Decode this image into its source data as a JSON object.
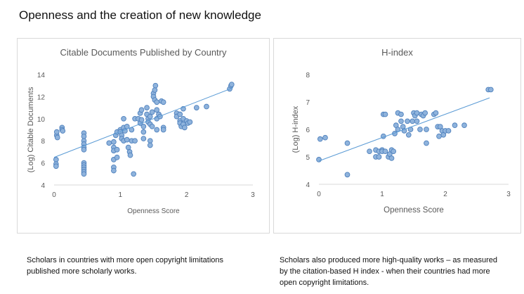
{
  "page": {
    "title": "Openness and the creation of new knowledge"
  },
  "captions": {
    "left": "Scholars in countries with more open copyright limitations published more scholarly works.",
    "right": "Scholars also produced more high-quality works – as measured by the citation-based  H index - when their countries had more open copyright limitations."
  },
  "colors": {
    "marker_fill": "#8fb3dc",
    "marker_stroke": "#4f81bd",
    "trendline": "#5b9bd5",
    "title_text": "#595959",
    "tick_text": "#595959",
    "axis_line": "#d9d9d9"
  },
  "chart_data": [
    {
      "type": "scatter",
      "title": "Citable Documents  Published  by Country",
      "xlabel": "Openness Score",
      "ylabel": "(Log) Citable Documents",
      "xlim": [
        0,
        3
      ],
      "ylim": [
        4,
        14
      ],
      "xticks": [
        "0",
        "1",
        "2",
        "3"
      ],
      "yticks": [
        "4",
        "6",
        "8",
        "10",
        "12",
        "14"
      ],
      "grid": false,
      "trendline": {
        "x": [
          0,
          2.7
        ],
        "y": [
          6.5,
          12.8
        ]
      },
      "points": [
        [
          0.03,
          6.3
        ],
        [
          0.03,
          5.9
        ],
        [
          0.03,
          5.7
        ],
        [
          0.04,
          8.5
        ],
        [
          0.04,
          8.8
        ],
        [
          0.05,
          8.3
        ],
        [
          0.12,
          9.2
        ],
        [
          0.12,
          9.0
        ],
        [
          0.13,
          8.9
        ],
        [
          0.45,
          8.7
        ],
        [
          0.45,
          8.4
        ],
        [
          0.45,
          8.0
        ],
        [
          0.45,
          7.7
        ],
        [
          0.45,
          7.4
        ],
        [
          0.45,
          7.2
        ],
        [
          0.45,
          6.0
        ],
        [
          0.45,
          5.8
        ],
        [
          0.45,
          5.6
        ],
        [
          0.45,
          5.4
        ],
        [
          0.45,
          5.2
        ],
        [
          0.45,
          5.0
        ],
        [
          0.83,
          7.8
        ],
        [
          0.9,
          7.9
        ],
        [
          0.9,
          7.4
        ],
        [
          0.9,
          7.1
        ],
        [
          0.9,
          6.3
        ],
        [
          0.9,
          5.6
        ],
        [
          0.9,
          5.3
        ],
        [
          0.93,
          8.5
        ],
        [
          0.95,
          8.8
        ],
        [
          0.95,
          7.2
        ],
        [
          0.95,
          6.5
        ],
        [
          1.0,
          9.0
        ],
        [
          1.0,
          8.8
        ],
        [
          1.02,
          8.5
        ],
        [
          1.02,
          8.2
        ],
        [
          1.05,
          10.0
        ],
        [
          1.05,
          9.2
        ],
        [
          1.05,
          8.0
        ],
        [
          1.07,
          8.9
        ],
        [
          1.1,
          8.1
        ],
        [
          1.1,
          9.3
        ],
        [
          1.12,
          7.4
        ],
        [
          1.14,
          7.0
        ],
        [
          1.15,
          6.7
        ],
        [
          1.17,
          8.0
        ],
        [
          1.17,
          9.0
        ],
        [
          1.2,
          5.0
        ],
        [
          1.22,
          8.0
        ],
        [
          1.22,
          10.0
        ],
        [
          1.27,
          10.0
        ],
        [
          1.3,
          10.5
        ],
        [
          1.3,
          9.6
        ],
        [
          1.32,
          10.8
        ],
        [
          1.32,
          9.9
        ],
        [
          1.35,
          9.3
        ],
        [
          1.35,
          8.2
        ],
        [
          1.35,
          8.8
        ],
        [
          1.4,
          11.0
        ],
        [
          1.4,
          10.4
        ],
        [
          1.42,
          10.0
        ],
        [
          1.42,
          9.7
        ],
        [
          1.45,
          10.2
        ],
        [
          1.45,
          9.5
        ],
        [
          1.45,
          8.0
        ],
        [
          1.45,
          7.6
        ],
        [
          1.48,
          10.6
        ],
        [
          1.48,
          9.3
        ],
        [
          1.5,
          12.3
        ],
        [
          1.5,
          12.0
        ],
        [
          1.52,
          11.7
        ],
        [
          1.52,
          12.6
        ],
        [
          1.53,
          13.0
        ],
        [
          1.55,
          11.5
        ],
        [
          1.55,
          10.8
        ],
        [
          1.55,
          10.0
        ],
        [
          1.55,
          9.0
        ],
        [
          1.58,
          10.4
        ],
        [
          1.6,
          10.2
        ],
        [
          1.62,
          11.6
        ],
        [
          1.65,
          11.5
        ],
        [
          1.65,
          9.2
        ],
        [
          1.65,
          9.0
        ],
        [
          1.85,
          10.5
        ],
        [
          1.85,
          10.2
        ],
        [
          1.9,
          10.4
        ],
        [
          1.9,
          9.8
        ],
        [
          1.9,
          9.6
        ],
        [
          1.92,
          9.3
        ],
        [
          1.95,
          10.9
        ],
        [
          1.95,
          10.0
        ],
        [
          1.95,
          9.5
        ],
        [
          1.97,
          9.2
        ],
        [
          2.0,
          9.8
        ],
        [
          2.02,
          9.6
        ],
        [
          2.05,
          9.7
        ],
        [
          2.15,
          11.0
        ],
        [
          2.3,
          11.1
        ],
        [
          2.65,
          12.7
        ],
        [
          2.67,
          13.0
        ],
        [
          2.68,
          13.1
        ]
      ]
    },
    {
      "type": "scatter",
      "title": "H-index",
      "xlabel": "Openness Score",
      "ylabel": "(Log) H-index",
      "xlim": [
        0,
        3
      ],
      "ylim": [
        4,
        8
      ],
      "xticks": [
        "0",
        "1",
        "2",
        "3"
      ],
      "yticks": [
        "4",
        "5",
        "6",
        "7",
        "8"
      ],
      "grid": false,
      "trendline": {
        "x": [
          0,
          2.7
        ],
        "y": [
          4.85,
          7.15
        ]
      },
      "points": [
        [
          0.0,
          4.9
        ],
        [
          0.02,
          5.65
        ],
        [
          0.1,
          5.7
        ],
        [
          0.45,
          4.35
        ],
        [
          0.45,
          5.5
        ],
        [
          0.8,
          5.2
        ],
        [
          0.9,
          5.25
        ],
        [
          0.9,
          5.0
        ],
        [
          0.95,
          5.2
        ],
        [
          0.95,
          5.0
        ],
        [
          1.0,
          5.25
        ],
        [
          1.0,
          5.2
        ],
        [
          1.02,
          5.75
        ],
        [
          1.02,
          6.55
        ],
        [
          1.05,
          6.55
        ],
        [
          1.05,
          5.2
        ],
        [
          1.1,
          5.0
        ],
        [
          1.12,
          5.1
        ],
        [
          1.15,
          4.95
        ],
        [
          1.15,
          5.25
        ],
        [
          1.18,
          5.2
        ],
        [
          1.2,
          5.85
        ],
        [
          1.22,
          6.15
        ],
        [
          1.25,
          6.0
        ],
        [
          1.25,
          6.6
        ],
        [
          1.3,
          6.55
        ],
        [
          1.3,
          6.3
        ],
        [
          1.33,
          6.1
        ],
        [
          1.35,
          5.95
        ],
        [
          1.4,
          6.3
        ],
        [
          1.42,
          5.8
        ],
        [
          1.45,
          6.0
        ],
        [
          1.48,
          6.3
        ],
        [
          1.5,
          6.6
        ],
        [
          1.52,
          6.5
        ],
        [
          1.55,
          6.6
        ],
        [
          1.55,
          6.3
        ],
        [
          1.6,
          6.0
        ],
        [
          1.62,
          6.55
        ],
        [
          1.65,
          6.5
        ],
        [
          1.68,
          6.6
        ],
        [
          1.7,
          6.0
        ],
        [
          1.7,
          5.5
        ],
        [
          1.82,
          6.55
        ],
        [
          1.85,
          6.6
        ],
        [
          1.88,
          6.1
        ],
        [
          1.9,
          5.75
        ],
        [
          1.92,
          6.1
        ],
        [
          1.95,
          5.95
        ],
        [
          1.97,
          5.8
        ],
        [
          2.0,
          5.95
        ],
        [
          2.05,
          5.95
        ],
        [
          2.15,
          6.15
        ],
        [
          2.3,
          6.15
        ],
        [
          2.68,
          7.45
        ],
        [
          2.72,
          7.45
        ]
      ]
    }
  ]
}
